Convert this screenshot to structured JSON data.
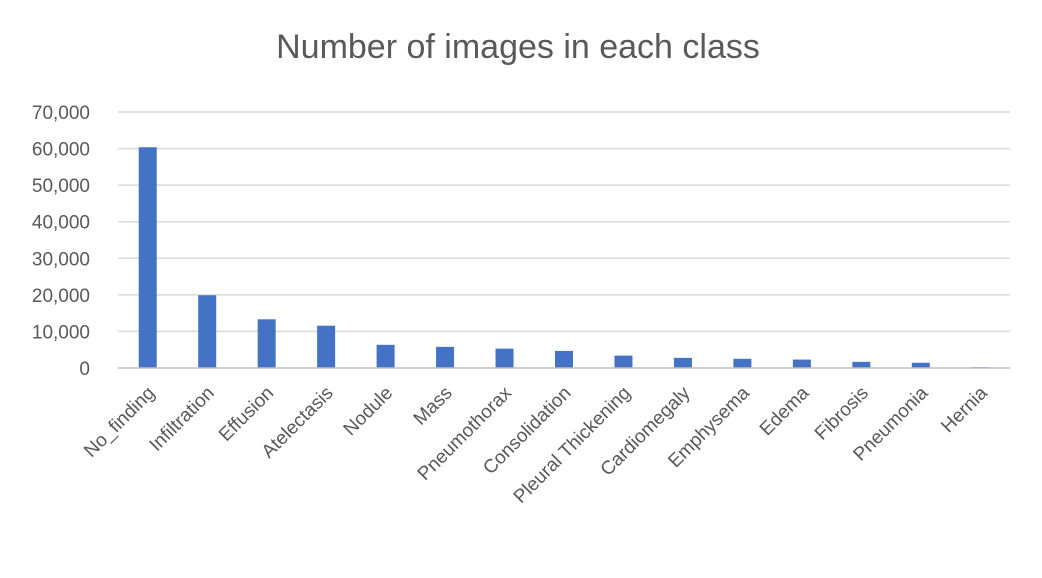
{
  "chart_data": {
    "type": "bar",
    "title": "Number of images in each class",
    "xlabel": "",
    "ylabel": "",
    "ylim": [
      0,
      70000
    ],
    "yticks": [
      "0",
      "10,000",
      "20,000",
      "30,000",
      "40,000",
      "50,000",
      "60,000",
      "70,000"
    ],
    "grid": true,
    "legend": "none",
    "bar_color": "#4472c4",
    "categories": [
      "No_finding",
      "Infiltration",
      "Effusion",
      "Atelectasis",
      "Nodule",
      "Mass",
      "Pneumothorax",
      "Consolidation",
      "Pleural Thickening",
      "Cardiomegaly",
      "Emphysema",
      "Edema",
      "Fibrosis",
      "Pneumonia",
      "Hernia"
    ],
    "values": [
      60361,
      19894,
      13317,
      11559,
      6331,
      5782,
      5302,
      4667,
      3385,
      2776,
      2516,
      2303,
      1686,
      1431,
      227
    ]
  }
}
